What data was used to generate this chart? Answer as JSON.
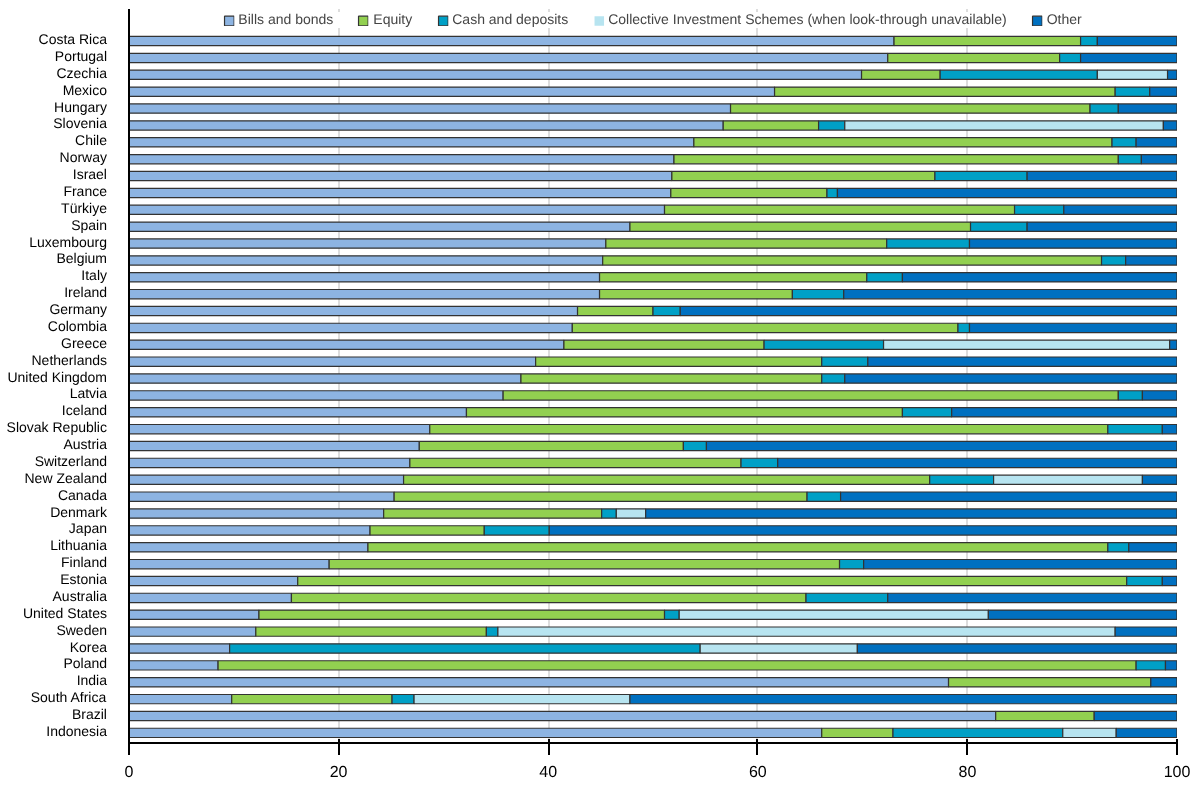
{
  "chart_data": {
    "type": "bar",
    "orientation": "horizontal",
    "stacked": true,
    "categories": [
      "Costa Rica",
      "Portugal",
      "Czechia",
      "Mexico",
      "Hungary",
      "Slovenia",
      "Chile",
      "Norway",
      "Israel",
      "France",
      "Türkiye",
      "Spain",
      "Luxembourg",
      "Belgium",
      "Italy",
      "Ireland",
      "Germany",
      "Colombia",
      "Greece",
      "Netherlands",
      "United Kingdom",
      "Latvia",
      "Iceland",
      "Slovak Republic",
      "Austria",
      "Switzerland",
      "New Zealand",
      "Canada",
      "Denmark",
      "Japan",
      "Lithuania",
      "Finland",
      "Estonia",
      "Australia",
      "United States",
      "Sweden",
      "Korea",
      "Poland",
      "India",
      "South Africa",
      "Brazil",
      "Indonesia"
    ],
    "series": [
      {
        "name": "Bills and bonds",
        "color": "#8db4e2",
        "values": [
          73,
          72.4,
          69.9,
          61.6,
          57.4,
          56.7,
          53.9,
          52,
          51.8,
          51.7,
          51.1,
          47.8,
          45.5,
          45.2,
          44.9,
          44.9,
          42.8,
          42.3,
          41.5,
          38.8,
          37.4,
          35.7,
          32.2,
          28.7,
          27.7,
          26.8,
          26.2,
          25.3,
          24.3,
          23,
          22.8,
          19.1,
          16.1,
          15.5,
          12.4,
          12.1,
          9.6,
          8.5,
          78.2,
          9.8,
          82.7,
          66.1
        ]
      },
      {
        "name": "Equity",
        "color": "#92d050",
        "values": [
          17.8,
          16.4,
          7.5,
          32.5,
          34.3,
          9.1,
          39.9,
          42.4,
          25.1,
          14.9,
          33.4,
          32.5,
          26.8,
          47.6,
          25.5,
          18.4,
          7.2,
          36.8,
          19.1,
          27.3,
          28.7,
          58.7,
          41.6,
          64.7,
          25.2,
          31.6,
          50.2,
          39.4,
          20.8,
          10.9,
          70.6,
          48.7,
          79.1,
          49.1,
          38.7,
          22,
          0,
          87.6,
          19.3,
          15.3,
          9.4,
          6.8
        ]
      },
      {
        "name": "Cash and deposits",
        "color": "#00a0c6",
        "values": [
          1.6,
          2,
          15,
          3.3,
          2.7,
          2.5,
          2.3,
          2.2,
          8.8,
          1,
          4.7,
          5.4,
          7.9,
          2.3,
          3.4,
          4.9,
          2.6,
          1.1,
          11.4,
          4.4,
          2.2,
          2.3,
          4.7,
          5.2,
          2.2,
          3.5,
          6.1,
          3.2,
          1.4,
          6.2,
          2,
          2.3,
          3.4,
          7.8,
          1.4,
          1.1,
          44.9,
          2.8,
          0,
          2.1,
          0,
          16.2
        ]
      },
      {
        "name": "Collective Investment Schemes (when look-through unavailable)",
        "color": "#b7e4f0",
        "values": [
          0,
          0,
          6.7,
          0,
          0,
          30.4,
          0,
          0,
          0,
          0,
          0,
          0,
          0,
          0,
          0,
          0,
          0,
          0,
          27.3,
          0,
          0,
          0,
          0,
          0,
          0,
          0,
          14.2,
          0,
          2.8,
          0,
          0,
          0,
          0,
          0,
          29.5,
          58.9,
          15,
          0,
          0,
          20.6,
          0,
          5.1
        ]
      },
      {
        "name": "Other",
        "color": "#0070c0",
        "values": [
          7.6,
          9.2,
          0.9,
          2.6,
          5.6,
          1.3,
          3.9,
          3.4,
          14.3,
          32.4,
          10.8,
          14.3,
          19.8,
          4.9,
          26.2,
          31.8,
          47.4,
          19.8,
          0.7,
          29.5,
          31.7,
          3.3,
          21.5,
          1.4,
          44.9,
          38.1,
          3.3,
          32.1,
          50.7,
          59.9,
          4.6,
          29.9,
          1.4,
          27.6,
          18,
          5.9,
          30.5,
          1.1,
          2.5,
          52.2,
          7.9,
          5.8
        ]
      }
    ],
    "xlim": [
      0,
      100
    ],
    "xticks": [
      0,
      20,
      40,
      60,
      80,
      100
    ],
    "grid": "x",
    "legend": "top"
  }
}
